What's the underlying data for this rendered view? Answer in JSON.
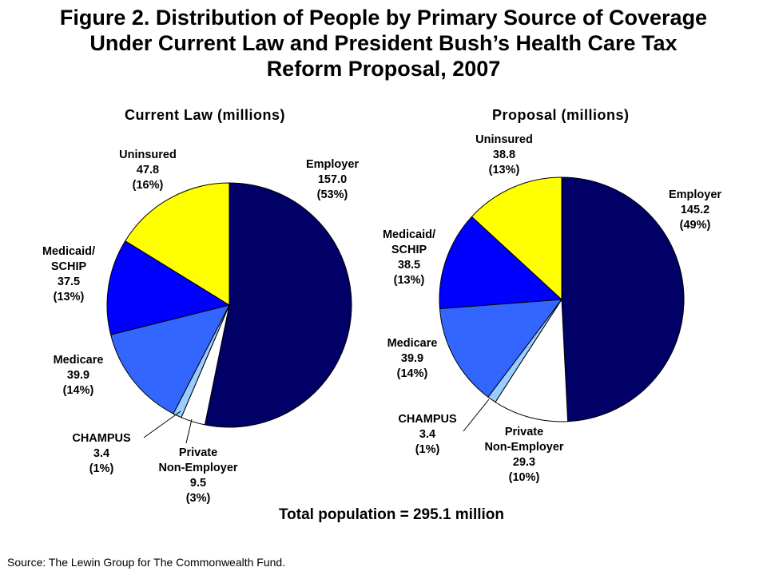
{
  "title_lines": [
    "Figure 2. Distribution of People by Primary Source of Coverage",
    "Under Current Law and President Bush’s Health Care Tax",
    "Reform Proposal, 2007"
  ],
  "colors": {
    "employer": "#000066",
    "private_non_employer": "#ffffff",
    "champus": "#99ccff",
    "medicare": "#3366ff",
    "medicaid_schip": "#0000ff",
    "uninsured": "#ffff00",
    "outline": "#000000"
  },
  "chart_data": [
    {
      "type": "pie",
      "title": "Current Law (millions)",
      "slices": [
        {
          "key": "employer",
          "label_lines": [
            "Employer",
            "157.0",
            "(53%)"
          ],
          "value": 157.0,
          "percent": 53
        },
        {
          "key": "private_non_employer",
          "label_lines": [
            "Private",
            "Non-Employer",
            "9.5",
            "(3%)"
          ],
          "value": 9.5,
          "percent": 3
        },
        {
          "key": "champus",
          "label_lines": [
            "CHAMPUS",
            "3.4",
            "(1%)"
          ],
          "value": 3.4,
          "percent": 1
        },
        {
          "key": "medicare",
          "label_lines": [
            "Medicare",
            "39.9",
            "(14%)"
          ],
          "value": 39.9,
          "percent": 14
        },
        {
          "key": "medicaid_schip",
          "label_lines": [
            "Medicaid/",
            "SCHIP",
            "37.5",
            "(13%)"
          ],
          "value": 37.5,
          "percent": 13
        },
        {
          "key": "uninsured",
          "label_lines": [
            "Uninsured",
            "47.8",
            "(16%)"
          ],
          "value": 47.8,
          "percent": 16
        }
      ]
    },
    {
      "type": "pie",
      "title": "Proposal (millions)",
      "slices": [
        {
          "key": "employer",
          "label_lines": [
            "Employer",
            "145.2",
            "(49%)"
          ],
          "value": 145.2,
          "percent": 49
        },
        {
          "key": "private_non_employer",
          "label_lines": [
            "Private",
            "Non-Employer",
            "29.3",
            "(10%)"
          ],
          "value": 29.3,
          "percent": 10
        },
        {
          "key": "champus",
          "label_lines": [
            "CHAMPUS",
            "3.4",
            "(1%)"
          ],
          "value": 3.4,
          "percent": 1
        },
        {
          "key": "medicare",
          "label_lines": [
            "Medicare",
            "39.9",
            "(14%)"
          ],
          "value": 39.9,
          "percent": 14
        },
        {
          "key": "medicaid_schip",
          "label_lines": [
            "Medicaid/",
            "SCHIP",
            "38.5",
            "(13%)"
          ],
          "value": 38.5,
          "percent": 13
        },
        {
          "key": "uninsured",
          "label_lines": [
            "Uninsured",
            "38.8",
            "(13%)"
          ],
          "value": 38.8,
          "percent": 13
        }
      ]
    }
  ],
  "total_text": "Total population = 295.1 million",
  "source_text": "Source: The Lewin Group for The Commonwealth Fund."
}
